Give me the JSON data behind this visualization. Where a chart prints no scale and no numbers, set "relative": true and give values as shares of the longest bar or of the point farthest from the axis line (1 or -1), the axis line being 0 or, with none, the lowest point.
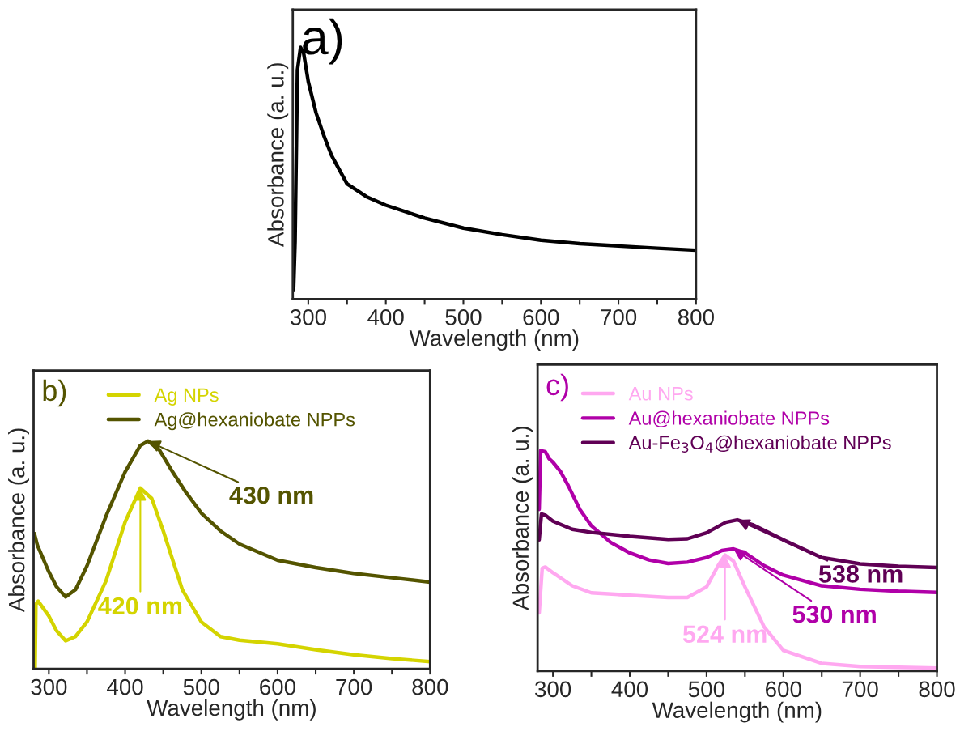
{
  "chart_data": [
    {
      "type": "line",
      "relative": true,
      "xlabel": "Wavelength (nm)",
      "ylabel": "Absorbance (a. u.)",
      "xlim": [
        280,
        800
      ],
      "xticks": [
        300,
        {
          "value": 350,
          "label": null
        },
        400,
        {
          "value": 450,
          "label": null
        },
        500,
        {
          "value": 550,
          "label": null
        },
        600,
        {
          "value": 650,
          "label": null
        },
        700,
        {
          "value": 750,
          "label": null
        },
        800
      ],
      "annotations": [
        "a)"
      ],
      "legend": false,
      "series": [
        {
          "color": "#000000",
          "x": [
            281,
            283,
            286,
            290,
            294,
            300,
            310,
            320,
            330,
            340,
            350,
            375,
            400,
            450,
            500,
            550,
            600,
            650,
            700,
            750,
            800
          ],
          "values": [
            0.034,
            0.23,
            0.91,
            1.0,
            0.977,
            0.864,
            0.74,
            0.65,
            0.571,
            0.514,
            0.458,
            0.407,
            0.373,
            0.322,
            0.282,
            0.256,
            0.234,
            0.22,
            0.211,
            0.202,
            0.194
          ]
        }
      ]
    },
    {
      "type": "line",
      "relative": true,
      "xlabel": "Wavelength (nm)",
      "ylabel": "Absorbance (a. u.)",
      "xlim": [
        280,
        800
      ],
      "xticks": [
        300,
        {
          "value": 350,
          "label": null
        },
        400,
        {
          "value": 450,
          "label": null
        },
        500,
        {
          "value": 550,
          "label": null
        },
        600,
        {
          "value": 650,
          "label": null
        },
        700,
        {
          "value": 750,
          "label": null
        },
        800
      ],
      "annotations": [
        "b)",
        {
          "text": "420 nm",
          "x": 420,
          "y": 0.794
        },
        {
          "text": "430 nm",
          "x": 430,
          "y": 1.0
        }
      ],
      "legend": "top",
      "series": [
        {
          "name": "Ag NPs",
          "color": "#d4d400",
          "x": [
            282,
            283,
            286,
            300,
            310,
            322,
            335,
            350,
            375,
            400,
            420,
            435,
            450,
            475,
            500,
            525,
            550,
            600,
            650,
            700,
            750,
            800
          ],
          "values": [
            0.006,
            0.284,
            0.297,
            0.232,
            0.168,
            0.123,
            0.142,
            0.206,
            0.387,
            0.645,
            0.794,
            0.748,
            0.606,
            0.348,
            0.206,
            0.142,
            0.126,
            0.11,
            0.084,
            0.062,
            0.045,
            0.032
          ]
        },
        {
          "name": "Ag@hexaniobate NPPs",
          "color": "#545400",
          "x": [
            281,
            285,
            300,
            310,
            322,
            335,
            350,
            375,
            400,
            420,
            430,
            445,
            460,
            480,
            500,
            525,
            550,
            600,
            650,
            700,
            750,
            800
          ],
          "values": [
            0.594,
            0.542,
            0.426,
            0.361,
            0.316,
            0.348,
            0.452,
            0.671,
            0.865,
            0.981,
            1.0,
            0.961,
            0.877,
            0.774,
            0.684,
            0.606,
            0.548,
            0.477,
            0.445,
            0.419,
            0.4,
            0.381
          ]
        }
      ]
    },
    {
      "type": "line",
      "relative": true,
      "xlabel": "Wavelength (nm)",
      "ylabel": "Absorbance (a. u.)",
      "xlim": [
        280,
        800
      ],
      "xticks": [
        300,
        {
          "value": 350,
          "label": null
        },
        400,
        {
          "value": 450,
          "label": null
        },
        500,
        {
          "value": 550,
          "label": null
        },
        600,
        {
          "value": 650,
          "label": null
        },
        700,
        {
          "value": 750,
          "label": null
        },
        800
      ],
      "annotations": [
        "c)",
        {
          "text": "524 nm",
          "x": 524,
          "y": 0.526
        },
        {
          "text": "530 nm",
          "x": 535,
          "y": 0.554
        },
        {
          "text": "538 nm",
          "x": 540,
          "y": 0.686
        }
      ],
      "legend": "top left",
      "series": [
        {
          "name": "Au NPs",
          "color": "#ffa8f0",
          "x": [
            282,
            286,
            290,
            300,
            325,
            350,
            400,
            450,
            475,
            500,
            515,
            524,
            535,
            550,
            575,
            600,
            650,
            700,
            750,
            800
          ],
          "values": [
            0.264,
            0.467,
            0.472,
            0.446,
            0.387,
            0.355,
            0.344,
            0.334,
            0.334,
            0.382,
            0.478,
            0.526,
            0.499,
            0.382,
            0.2,
            0.094,
            0.035,
            0.021,
            0.017,
            0.014
          ]
        },
        {
          "name": "Au@hexaniobate NPPs",
          "color": "#b000a8",
          "x": [
            282,
            284,
            290,
            295,
            300,
            310,
            320,
            335,
            350,
            375,
            400,
            425,
            450,
            475,
            500,
            520,
            535,
            550,
            575,
            600,
            650,
            700,
            750,
            800
          ],
          "values": [
            0.733,
            1.0,
            0.995,
            0.963,
            0.947,
            0.904,
            0.84,
            0.733,
            0.659,
            0.584,
            0.536,
            0.504,
            0.488,
            0.494,
            0.515,
            0.547,
            0.554,
            0.536,
            0.478,
            0.435,
            0.387,
            0.371,
            0.362,
            0.357
          ]
        },
        {
          "name": "Au-Fe$_{3}$O$_{4}$@hexaniobate NPPs",
          "color": "#600055",
          "x": [
            282,
            285,
            290,
            300,
            325,
            350,
            400,
            450,
            475,
            500,
            525,
            540,
            560,
            600,
            650,
            700,
            750,
            800
          ],
          "values": [
            0.595,
            0.712,
            0.707,
            0.68,
            0.643,
            0.629,
            0.611,
            0.597,
            0.6,
            0.627,
            0.675,
            0.686,
            0.664,
            0.595,
            0.515,
            0.486,
            0.475,
            0.47
          ]
        }
      ]
    }
  ]
}
